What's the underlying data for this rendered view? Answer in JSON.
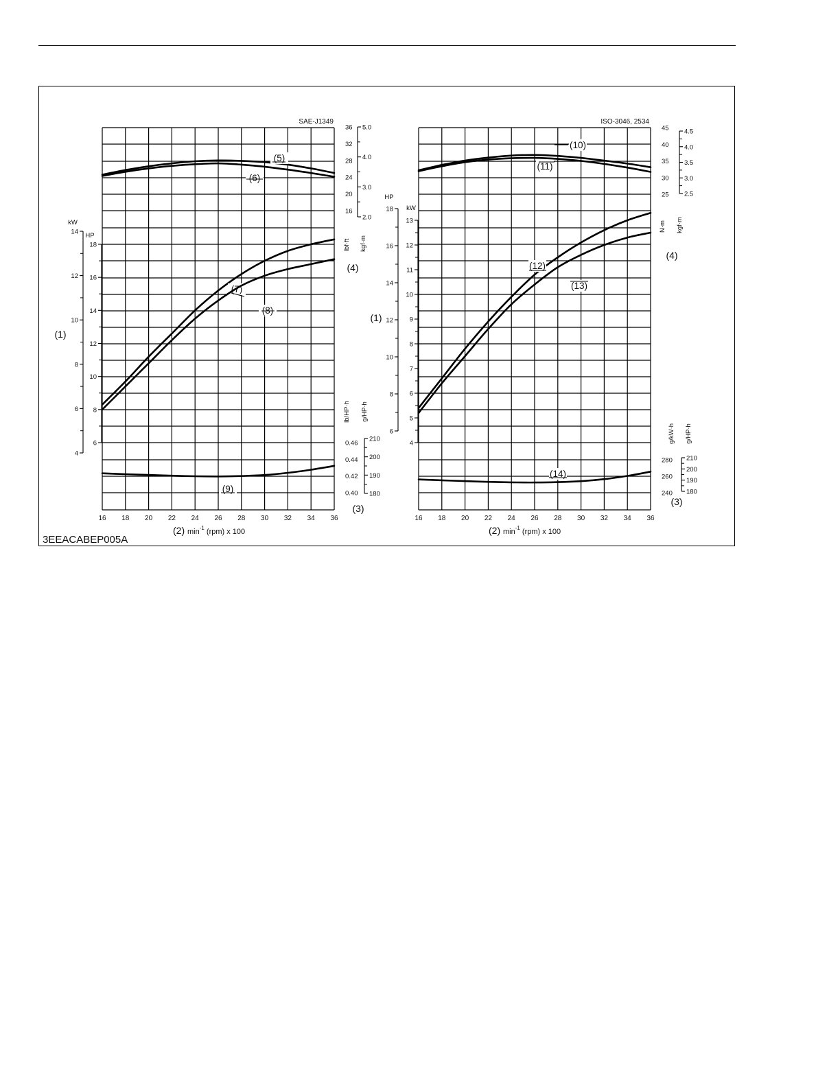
{
  "figure": {
    "id": "3EEACABEP005A"
  },
  "chart_data": [
    {
      "type": "line",
      "title": "SAE-J1349",
      "xlabel": {
        "prefix": "(2)",
        "unit": "min",
        "sup": "-1",
        "suffix": "(rpm) x 100"
      },
      "x_ticks": [
        "16",
        "18",
        "20",
        "22",
        "24",
        "26",
        "28",
        "30",
        "32",
        "34",
        "36"
      ],
      "xlim": [
        16,
        36
      ],
      "grid": true,
      "power_axis": {
        "callout": "(1)",
        "kW": {
          "unit": "kW",
          "ticks": [
            "14",
            "12",
            "10",
            "8",
            "6",
            "4"
          ],
          "range": [
            4,
            14
          ]
        },
        "HP": {
          "unit": "HP",
          "ticks": [
            "18",
            "16",
            "14",
            "12",
            "10",
            "8",
            "6"
          ],
          "range": [
            6,
            18
          ]
        }
      },
      "torque_axis": {
        "callout": "(4)",
        "lbf_ft": {
          "unit": "lbf·ft",
          "ticks": [
            "36",
            "32",
            "28",
            "24",
            "20",
            "16"
          ],
          "range": [
            16,
            36
          ]
        },
        "kgf_m": {
          "unit": "kgf·m",
          "ticks": [
            "5.0",
            "4.0",
            "3.0",
            "2.0"
          ],
          "range": [
            2.0,
            5.0
          ]
        }
      },
      "bsfc_axis": {
        "callout": "(3)",
        "lb_HP_h": {
          "unit": "lb/HP·h",
          "ticks": [
            "0.46",
            "0.44",
            "0.42",
            "0.40"
          ],
          "range": [
            0.4,
            0.46
          ]
        },
        "g_HP_h": {
          "unit": "g/HP·h",
          "ticks": [
            "210",
            "200",
            "190",
            "180"
          ],
          "range": [
            180,
            210
          ]
        }
      },
      "series": [
        {
          "name": "(5)",
          "axis": "torque",
          "unit": "lbf·ft",
          "x": [
            16,
            18,
            20,
            22,
            24,
            26,
            28,
            30,
            32,
            34,
            36
          ],
          "y": [
            24.6,
            25.7,
            26.6,
            27.3,
            27.8,
            28.0,
            27.9,
            27.6,
            27.0,
            26.1,
            25.0
          ]
        },
        {
          "name": "(6)",
          "axis": "torque",
          "unit": "lbf·ft",
          "x": [
            16,
            18,
            20,
            22,
            24,
            26,
            28,
            30,
            32,
            34,
            36
          ],
          "y": [
            24.3,
            25.3,
            26.1,
            26.7,
            27.1,
            27.3,
            27.0,
            26.5,
            25.8,
            25.0,
            24.1
          ]
        },
        {
          "name": "(7)",
          "axis": "power",
          "unit": "HP",
          "x": [
            16,
            18,
            20,
            22,
            24,
            26,
            28,
            30,
            32,
            34,
            36
          ],
          "y": [
            8.3,
            9.7,
            11.2,
            12.6,
            14.0,
            15.2,
            16.2,
            17.0,
            17.6,
            18.0,
            18.3
          ]
        },
        {
          "name": "(8)",
          "axis": "power",
          "unit": "HP",
          "x": [
            16,
            18,
            20,
            22,
            24,
            26,
            28,
            30,
            32,
            34,
            36
          ],
          "y": [
            8.0,
            9.4,
            10.8,
            12.2,
            13.5,
            14.6,
            15.5,
            16.1,
            16.5,
            16.8,
            17.1
          ]
        },
        {
          "name": "(9)",
          "axis": "bsfc",
          "unit": "lb/HP·h",
          "x": [
            16,
            18,
            20,
            22,
            24,
            26,
            28,
            30,
            32,
            34,
            36
          ],
          "y": [
            0.4233,
            0.4222,
            0.4213,
            0.4204,
            0.4197,
            0.4195,
            0.42,
            0.4212,
            0.4238,
            0.4275,
            0.4322
          ]
        }
      ]
    },
    {
      "type": "line",
      "title": "ISO-3046, 2534",
      "xlabel": {
        "prefix": "(2)",
        "unit": "min",
        "sup": "-1",
        "suffix": "(rpm) x 100"
      },
      "x_ticks": [
        "16",
        "18",
        "20",
        "22",
        "24",
        "26",
        "28",
        "30",
        "32",
        "34",
        "36"
      ],
      "xlim": [
        16,
        36
      ],
      "grid": true,
      "power_axis": {
        "callout": "(1)",
        "HP": {
          "unit": "HP",
          "ticks": [
            "18",
            "16",
            "14",
            "12",
            "10",
            "8",
            "6"
          ],
          "range": [
            6,
            18
          ]
        },
        "kW": {
          "unit": "kW",
          "ticks": [
            "13",
            "12",
            "11",
            "10",
            "9",
            "8",
            "7",
            "6",
            "5",
            "4"
          ],
          "range": [
            4,
            13
          ]
        }
      },
      "torque_axis": {
        "callout": "(4)",
        "N_m": {
          "unit": "N·m",
          "ticks": [
            "45",
            "40",
            "35",
            "30",
            "25"
          ],
          "range": [
            25,
            45
          ]
        },
        "kgf_m": {
          "unit": "kgf·m",
          "ticks": [
            "4.5",
            "4.0",
            "3.5",
            "3.0",
            "2.5"
          ],
          "range": [
            2.5,
            4.5
          ]
        }
      },
      "bsfc_axis": {
        "callout": "(3)",
        "g_kW_h": {
          "unit": "g/kW·h",
          "ticks": [
            "280",
            "260",
            "240"
          ],
          "range": [
            240,
            280
          ]
        },
        "g_HP_h": {
          "unit": "g/HP·h",
          "ticks": [
            "210",
            "200",
            "190",
            "180"
          ],
          "range": [
            180,
            210
          ]
        }
      },
      "series": [
        {
          "name": "(10)",
          "axis": "torque",
          "unit": "N·m",
          "x": [
            16,
            18,
            20,
            22,
            24,
            26,
            28,
            30,
            32,
            34,
            36
          ],
          "y": [
            32.2,
            33.8,
            35.1,
            36.0,
            36.6,
            36.8,
            36.5,
            35.9,
            35.1,
            34.2,
            33.1
          ]
        },
        {
          "name": "(11)",
          "axis": "torque",
          "unit": "N·m",
          "x": [
            16,
            18,
            20,
            22,
            24,
            26,
            28,
            30,
            32,
            34,
            36
          ],
          "y": [
            31.9,
            33.4,
            34.6,
            35.4,
            35.8,
            35.9,
            35.6,
            35.0,
            34.1,
            33.0,
            31.7
          ]
        },
        {
          "name": "(12)",
          "axis": "power",
          "unit": "kW",
          "x": [
            16,
            18,
            20,
            22,
            24,
            26,
            28,
            30,
            32,
            34,
            36
          ],
          "y": [
            5.4,
            6.6,
            7.8,
            8.9,
            9.9,
            10.8,
            11.5,
            12.1,
            12.6,
            13.0,
            13.3
          ]
        },
        {
          "name": "(13)",
          "axis": "power",
          "unit": "kW",
          "x": [
            16,
            18,
            20,
            22,
            24,
            26,
            28,
            30,
            32,
            34,
            36
          ],
          "y": [
            5.2,
            6.4,
            7.5,
            8.6,
            9.6,
            10.4,
            11.1,
            11.6,
            12.0,
            12.3,
            12.5
          ]
        },
        {
          "name": "(14)",
          "axis": "bsfc",
          "unit": "g/kW·h",
          "x": [
            16,
            18,
            20,
            22,
            24,
            26,
            28,
            30,
            32,
            34,
            36
          ],
          "y": [
            256.1,
            255.1,
            254.1,
            253.2,
            252.6,
            252.4,
            252.8,
            254.0,
            256.5,
            260.4,
            265.6
          ]
        }
      ]
    }
  ]
}
